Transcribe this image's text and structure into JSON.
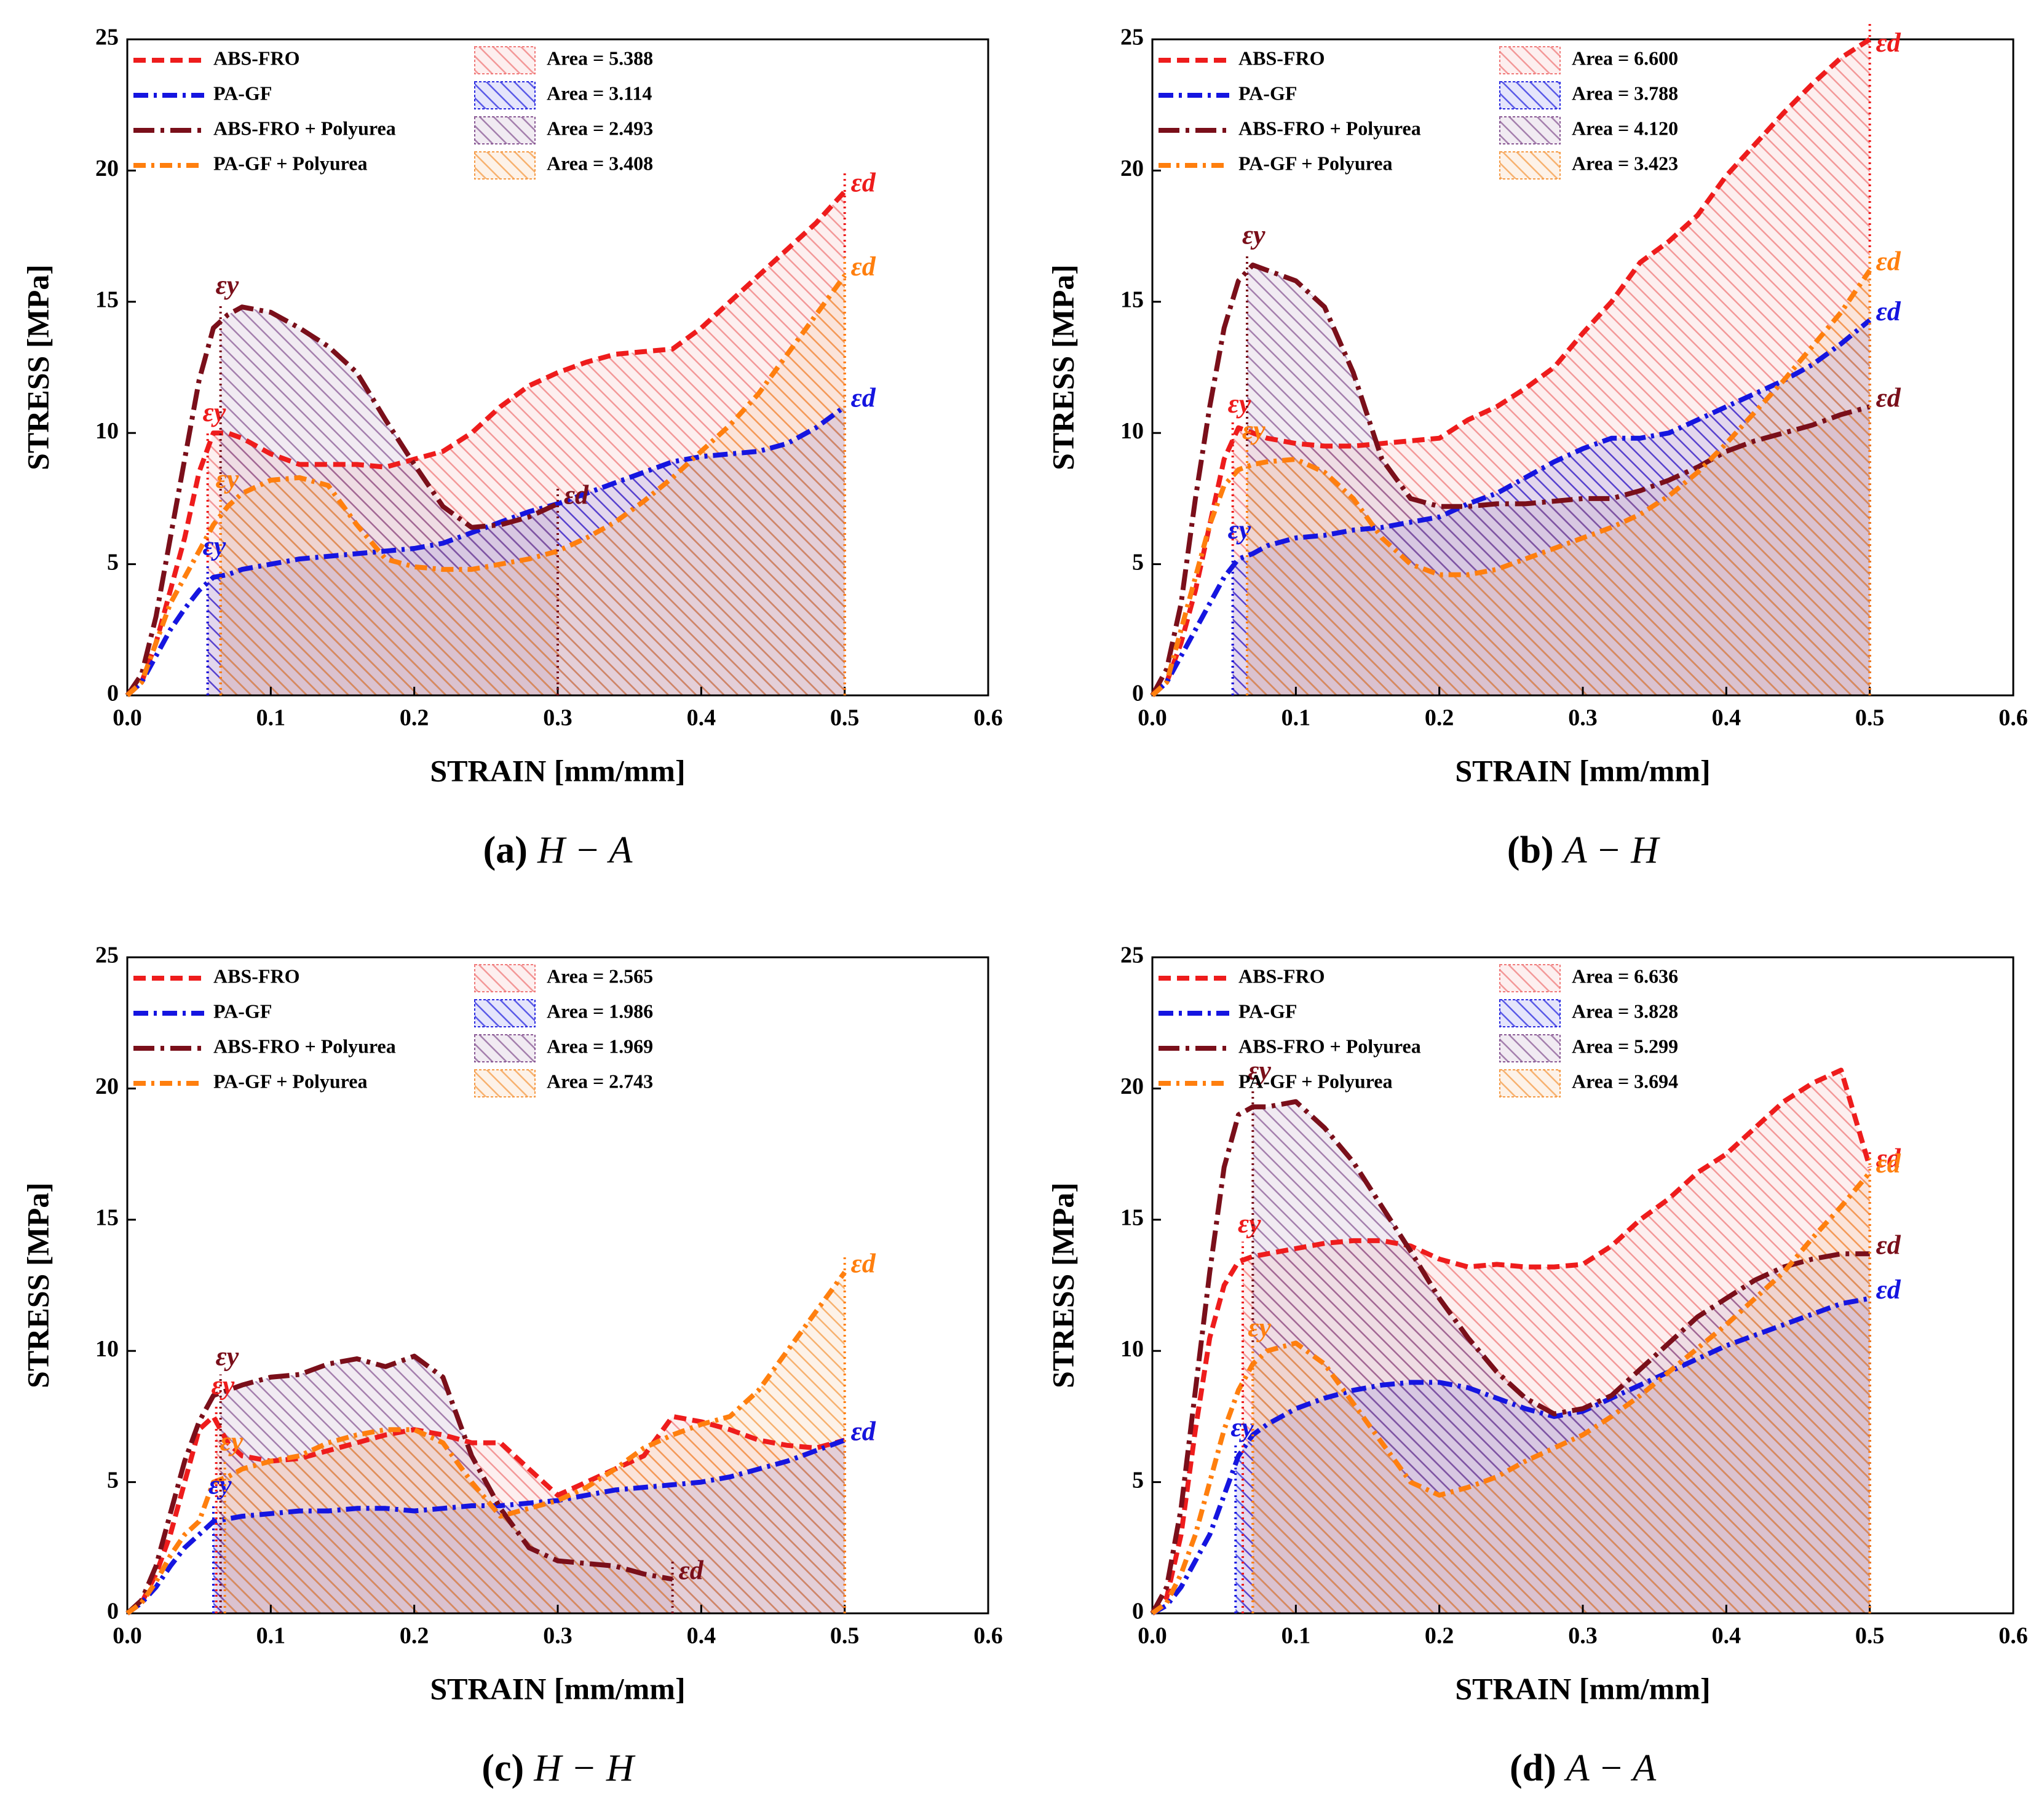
{
  "chart_data": [
    {
      "type": "line",
      "panel": "(a)",
      "caption": "H − A",
      "x_label": "STRAIN [mm/mm]",
      "y_label": "STRESS [MPa]",
      "xlim": [
        0,
        0.6
      ],
      "ylim": [
        0,
        25
      ],
      "xticks": [
        {
          "value": 0,
          "label": "0.0"
        },
        0.1,
        0.2,
        0.3,
        0.4,
        0.5,
        0.6
      ],
      "yticks": [
        0,
        5,
        10,
        15,
        20,
        25
      ],
      "yield_label": "εy",
      "break_label": "εd",
      "x": [
        0,
        0.01,
        0.02,
        0.03,
        0.04,
        0.05,
        0.06,
        0.07,
        0.08,
        0.1,
        0.12,
        0.14,
        0.16,
        0.18,
        0.2,
        0.22,
        0.24,
        0.26,
        0.28,
        0.3,
        0.32,
        0.34,
        0.36,
        0.38,
        0.4,
        0.42,
        0.44,
        0.46,
        0.48,
        0.5
      ],
      "series": [
        {
          "name": "ABS-FRO",
          "color": "#ee1c1c",
          "hatch_color": "#f07a7a",
          "area_label": "Area = 5.388",
          "yield_strain": 0.056,
          "break_strain": 0.5,
          "values": [
            0,
            0.5,
            2,
            4,
            6,
            8.5,
            10,
            10,
            9.8,
            9.2,
            8.8,
            8.8,
            8.8,
            8.7,
            9,
            9.3,
            10,
            11,
            11.8,
            12.3,
            12.7,
            13,
            13.1,
            13.2,
            14,
            15,
            16,
            17,
            18,
            19.2
          ]
        },
        {
          "name": "PA-GF",
          "color": "#1515e0",
          "hatch_color": "#2a2ae0",
          "area_label": "Area = 3.114",
          "yield_strain": 0.056,
          "break_strain": 0.5,
          "values": [
            0,
            0.5,
            1.5,
            2.5,
            3.3,
            4,
            4.5,
            4.6,
            4.8,
            5,
            5.2,
            5.3,
            5.4,
            5.5,
            5.6,
            5.8,
            6.2,
            6.6,
            7,
            7.3,
            7.7,
            8.1,
            8.5,
            8.9,
            9.1,
            9.2,
            9.3,
            9.6,
            10.2,
            11
          ]
        },
        {
          "name": "ABS-FRO + Polyurea",
          "color": "#7a0f1a",
          "hatch_color": "#8a5a95",
          "area_label": "Area = 2.493",
          "yield_strain": 0.065,
          "break_strain": 0.3,
          "values": [
            0,
            0.8,
            3,
            6,
            9,
            12,
            14,
            14.5,
            14.8,
            14.6,
            14,
            13.3,
            12.3,
            10.5,
            8.8,
            7.2,
            6.4,
            6.5,
            6.8,
            7.3,
            null,
            null,
            null,
            null,
            null,
            null,
            null,
            null,
            null,
            null
          ]
        },
        {
          "name": "PA-GF + Polyurea",
          "color": "#ff7f0e",
          "hatch_color": "#f59a45",
          "area_label": "Area = 3.408",
          "yield_strain": 0.065,
          "break_strain": 0.5,
          "values": [
            0,
            0.5,
            2,
            3.5,
            4.5,
            5.5,
            6.5,
            7.2,
            7.7,
            8.2,
            8.3,
            8,
            6.5,
            5.2,
            4.9,
            4.8,
            4.8,
            5,
            5.2,
            5.5,
            6,
            6.6,
            7.4,
            8.3,
            9.3,
            10.3,
            11.5,
            13,
            14.5,
            16
          ]
        }
      ]
    },
    {
      "type": "line",
      "panel": "(b)",
      "caption": "A − H",
      "x_label": "STRAIN [mm/mm]",
      "y_label": "STRESS [MPa]",
      "xlim": [
        0,
        0.6
      ],
      "ylim": [
        0,
        25
      ],
      "xticks": [
        {
          "value": 0,
          "label": "0.0"
        },
        0.1,
        0.2,
        0.3,
        0.4,
        0.5,
        0.6
      ],
      "yticks": [
        0,
        5,
        10,
        15,
        20,
        25
      ],
      "yield_label": "εy",
      "break_label": "εd",
      "x": [
        0,
        0.01,
        0.02,
        0.03,
        0.04,
        0.05,
        0.06,
        0.07,
        0.08,
        0.1,
        0.12,
        0.14,
        0.16,
        0.18,
        0.2,
        0.22,
        0.24,
        0.26,
        0.28,
        0.3,
        0.32,
        0.34,
        0.36,
        0.38,
        0.4,
        0.42,
        0.44,
        0.46,
        0.48,
        0.5
      ],
      "series": [
        {
          "name": "ABS-FRO",
          "color": "#ee1c1c",
          "hatch_color": "#f07a7a",
          "area_label": "Area = 6.600",
          "yield_strain": 0.056,
          "break_strain": 0.5,
          "values": [
            0,
            0.5,
            2,
            4,
            6.5,
            9,
            10.2,
            10,
            9.8,
            9.6,
            9.5,
            9.5,
            9.6,
            9.7,
            9.8,
            10.5,
            11,
            11.7,
            12.5,
            13.8,
            15,
            16.5,
            17.3,
            18.3,
            19.8,
            21,
            22.2,
            23.3,
            24.3,
            25
          ]
        },
        {
          "name": "PA-GF",
          "color": "#1515e0",
          "hatch_color": "#2a2ae0",
          "area_label": "Area = 3.788",
          "yield_strain": 0.056,
          "break_strain": 0.5,
          "values": [
            0,
            0.5,
            1.5,
            2.5,
            3.5,
            4.5,
            5.2,
            5.4,
            5.7,
            6,
            6.1,
            6.3,
            6.4,
            6.6,
            6.8,
            7.3,
            7.7,
            8.3,
            8.9,
            9.4,
            9.8,
            9.8,
            10,
            10.5,
            11,
            11.5,
            12,
            12.6,
            13.4,
            14.3
          ]
        },
        {
          "name": "ABS-FRO + Polyurea",
          "color": "#7a0f1a",
          "hatch_color": "#8a5a95",
          "area_label": "Area = 4.120",
          "yield_strain": 0.066,
          "break_strain": 0.5,
          "values": [
            0,
            1,
            3.5,
            7.5,
            11,
            14,
            15.8,
            16.4,
            16.2,
            15.8,
            14.8,
            12.3,
            9,
            7.5,
            7.2,
            7.2,
            7.3,
            7.3,
            7.4,
            7.5,
            7.5,
            7.8,
            8.2,
            8.7,
            9.3,
            9.7,
            10,
            10.3,
            10.7,
            11
          ]
        },
        {
          "name": "PA-GF + Polyurea",
          "color": "#ff7f0e",
          "hatch_color": "#f59a45",
          "area_label": "Area = 3.423",
          "yield_strain": 0.066,
          "break_strain": 0.5,
          "values": [
            0,
            0.5,
            2.5,
            4.5,
            6.5,
            8,
            8.6,
            8.8,
            8.9,
            9,
            8.5,
            7.5,
            6,
            5,
            4.6,
            4.6,
            4.8,
            5.2,
            5.6,
            6,
            6.4,
            6.9,
            7.6,
            8.5,
            9.6,
            10.8,
            12,
            13.3,
            14.6,
            16.2
          ]
        }
      ]
    },
    {
      "type": "line",
      "panel": "(c)",
      "caption": "H − H",
      "x_label": "STRAIN [mm/mm]",
      "y_label": "STRESS [MPa]",
      "xlim": [
        0,
        0.6
      ],
      "ylim": [
        0,
        25
      ],
      "xticks": [
        {
          "value": 0,
          "label": "0.0"
        },
        0.1,
        0.2,
        0.3,
        0.4,
        0.5,
        0.6
      ],
      "yticks": [
        0,
        5,
        10,
        15,
        20,
        25
      ],
      "yield_label": "εy",
      "break_label": "εd",
      "x": [
        0,
        0.01,
        0.02,
        0.03,
        0.04,
        0.05,
        0.06,
        0.07,
        0.08,
        0.1,
        0.12,
        0.14,
        0.16,
        0.18,
        0.2,
        0.22,
        0.24,
        0.26,
        0.28,
        0.3,
        0.32,
        0.34,
        0.36,
        0.38,
        0.4,
        0.42,
        0.44,
        0.46,
        0.48,
        0.5
      ],
      "series": [
        {
          "name": "ABS-FRO",
          "color": "#ee1c1c",
          "hatch_color": "#f07a7a",
          "area_label": "Area = 2.565",
          "yield_strain": 0.062,
          "break_strain": 0.5,
          "values": [
            0,
            0.4,
            1.5,
            3,
            5,
            7,
            7.5,
            6.5,
            6,
            5.8,
            5.9,
            6.2,
            6.5,
            6.8,
            7,
            6.8,
            6.5,
            6.5,
            5.5,
            4.5,
            5,
            5.5,
            6,
            7.5,
            7.3,
            7,
            6.6,
            6.4,
            6.3,
            6.6
          ]
        },
        {
          "name": "PA-GF",
          "color": "#1515e0",
          "hatch_color": "#2a2ae0",
          "area_label": "Area = 1.986",
          "yield_strain": 0.06,
          "break_strain": 0.5,
          "values": [
            0,
            0.4,
            1,
            1.8,
            2.5,
            3,
            3.5,
            3.6,
            3.7,
            3.8,
            3.9,
            3.9,
            4,
            4,
            3.9,
            4,
            4.1,
            4.1,
            4.2,
            4.3,
            4.5,
            4.7,
            4.8,
            4.9,
            5,
            5.2,
            5.5,
            5.8,
            6.2,
            6.6
          ]
        },
        {
          "name": "ABS-FRO + Polyurea",
          "color": "#7a0f1a",
          "hatch_color": "#8a5a95",
          "area_label": "Area = 1.969",
          "yield_strain": 0.065,
          "break_strain": 0.38,
          "values": [
            0,
            0.5,
            1.8,
            3.8,
            5.8,
            7.3,
            8.3,
            8.5,
            8.7,
            9,
            9.1,
            9.5,
            9.7,
            9.4,
            9.8,
            9,
            6,
            4,
            2.5,
            2,
            1.9,
            1.8,
            1.5,
            1.3,
            null,
            null,
            null,
            null,
            null,
            null
          ]
        },
        {
          "name": "PA-GF + Polyurea",
          "color": "#ff7f0e",
          "hatch_color": "#f59a45",
          "area_label": "Area = 2.743",
          "yield_strain": 0.068,
          "break_strain": 0.5,
          "values": [
            0,
            0.4,
            1.2,
            2.2,
            3,
            3.5,
            5,
            5.2,
            5.5,
            5.8,
            6,
            6.5,
            6.8,
            7,
            7,
            6.5,
            5,
            3.7,
            4,
            4.3,
            4.8,
            5.5,
            6.3,
            6.8,
            7.2,
            7.5,
            8.5,
            10,
            11.5,
            13
          ]
        }
      ]
    },
    {
      "type": "line",
      "panel": "(d)",
      "caption": "A − A",
      "x_label": "STRAIN [mm/mm]",
      "y_label": "STRESS [MPa]",
      "xlim": [
        0,
        0.6
      ],
      "ylim": [
        0,
        25
      ],
      "xticks": [
        {
          "value": 0,
          "label": "0.0"
        },
        0.1,
        0.2,
        0.3,
        0.4,
        0.5,
        0.6
      ],
      "yticks": [
        0,
        5,
        10,
        15,
        20,
        25
      ],
      "yield_label": "εy",
      "break_label": "εd",
      "x": [
        0,
        0.01,
        0.02,
        0.03,
        0.04,
        0.05,
        0.06,
        0.07,
        0.08,
        0.1,
        0.12,
        0.14,
        0.16,
        0.18,
        0.2,
        0.22,
        0.24,
        0.26,
        0.28,
        0.3,
        0.32,
        0.34,
        0.36,
        0.38,
        0.4,
        0.42,
        0.44,
        0.46,
        0.48,
        0.5
      ],
      "series": [
        {
          "name": "ABS-FRO",
          "color": "#ee1c1c",
          "hatch_color": "#f07a7a",
          "area_label": "Area = 6.636",
          "yield_strain": 0.063,
          "break_strain": 0.5,
          "values": [
            0,
            0.6,
            3,
            7,
            10.5,
            12.5,
            13.4,
            13.6,
            13.7,
            13.9,
            14.1,
            14.2,
            14.2,
            14,
            13.5,
            13.2,
            13.3,
            13.2,
            13.2,
            13.3,
            14,
            15,
            15.8,
            16.8,
            17.5,
            18.5,
            19.5,
            20.2,
            20.7,
            17
          ]
        },
        {
          "name": "PA-GF",
          "color": "#1515e0",
          "hatch_color": "#2a2ae0",
          "area_label": "Area = 3.828",
          "yield_strain": 0.058,
          "break_strain": 0.5,
          "values": [
            0,
            0.3,
            1,
            2,
            3,
            4.5,
            6,
            6.8,
            7.2,
            7.8,
            8.2,
            8.5,
            8.7,
            8.8,
            8.8,
            8.6,
            8.2,
            7.8,
            7.5,
            7.7,
            8.2,
            8.7,
            9.2,
            9.7,
            10.2,
            10.6,
            11,
            11.4,
            11.8,
            12
          ]
        },
        {
          "name": "ABS-FRO + Polyurea",
          "color": "#7a0f1a",
          "hatch_color": "#8a5a95",
          "area_label": "Area = 5.299",
          "yield_strain": 0.07,
          "break_strain": 0.5,
          "values": [
            0,
            1,
            4,
            8.5,
            13,
            17,
            19,
            19.3,
            19.3,
            19.5,
            18.5,
            17.2,
            15.5,
            13.8,
            12,
            10.5,
            9.2,
            8.2,
            7.6,
            7.8,
            8.3,
            9.3,
            10.3,
            11.3,
            12,
            12.7,
            13.2,
            13.5,
            13.7,
            13.7
          ]
        },
        {
          "name": "PA-GF + Polyurea",
          "color": "#ff7f0e",
          "hatch_color": "#f59a45",
          "area_label": "Area = 3.694",
          "yield_strain": 0.07,
          "break_strain": 0.5,
          "values": [
            0,
            0.4,
            1.5,
            3,
            5,
            7,
            8.5,
            9.5,
            10,
            10.3,
            9.5,
            8,
            6.5,
            5,
            4.5,
            4.8,
            5.2,
            5.8,
            6.3,
            6.8,
            7.5,
            8.3,
            9.2,
            10.1,
            11,
            12,
            13,
            14.3,
            15.5,
            16.8
          ]
        }
      ]
    }
  ]
}
